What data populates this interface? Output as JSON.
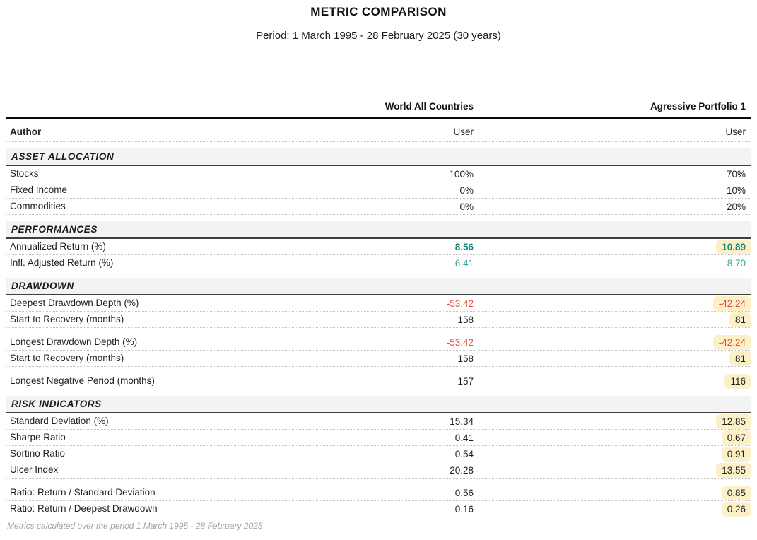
{
  "page": {
    "title": "METRIC COMPARISON",
    "subtitle": "Period: 1 March 1995 - 28 February 2025 (30 years)",
    "footer_note": "Metrics calculated over the period 1 March 1995 - 28 February 2025"
  },
  "colors": {
    "positive_bold": "#13897b",
    "positive": "#2fa69b",
    "negative": "#e74c3c",
    "highlight_bg": "#fcf0c8",
    "section_band_bg": "#f3f3f3"
  },
  "chart_data": {
    "type": "table",
    "title": "METRIC COMPARISON",
    "period": "1 March 1995 - 28 February 2025 (30 years)",
    "columns": [
      "World All Countries",
      "Agressive Portfolio 1"
    ],
    "author_row": {
      "label": "Author",
      "values": [
        "User",
        "User"
      ]
    },
    "sections": [
      {
        "name": "ASSET ALLOCATION",
        "groups": [
          {
            "rows": [
              {
                "label": "Stocks",
                "values": [
                  {
                    "text": "100%"
                  },
                  {
                    "text": "70%"
                  }
                ]
              },
              {
                "label": "Fixed Income",
                "values": [
                  {
                    "text": "0%"
                  },
                  {
                    "text": "10%"
                  }
                ]
              },
              {
                "label": "Commodities",
                "values": [
                  {
                    "text": "0%"
                  },
                  {
                    "text": "20%"
                  }
                ]
              }
            ]
          }
        ]
      },
      {
        "name": "PERFORMANCES",
        "groups": [
          {
            "rows": [
              {
                "label": "Annualized Return (%)",
                "values": [
                  {
                    "text": "8.56",
                    "style": "positive-bold"
                  },
                  {
                    "text": "10.89",
                    "style": "positive-bold",
                    "highlight": true
                  }
                ]
              },
              {
                "label": "Infl. Adjusted Return (%)",
                "values": [
                  {
                    "text": "6.41",
                    "style": "positive"
                  },
                  {
                    "text": "8.70",
                    "style": "positive"
                  }
                ]
              }
            ]
          }
        ]
      },
      {
        "name": "DRAWDOWN",
        "groups": [
          {
            "rows": [
              {
                "label": "Deepest Drawdown Depth (%)",
                "values": [
                  {
                    "text": "-53.42",
                    "style": "negative"
                  },
                  {
                    "text": "-42.24",
                    "style": "negative",
                    "highlight": true
                  }
                ]
              },
              {
                "label": "Start to Recovery (months)",
                "values": [
                  {
                    "text": "158"
                  },
                  {
                    "text": "81",
                    "highlight": true
                  }
                ]
              }
            ]
          },
          {
            "rows": [
              {
                "label": "Longest Drawdown Depth (%)",
                "values": [
                  {
                    "text": "-53.42",
                    "style": "negative"
                  },
                  {
                    "text": "-42.24",
                    "style": "negative",
                    "highlight": true
                  }
                ]
              },
              {
                "label": "Start to Recovery (months)",
                "values": [
                  {
                    "text": "158"
                  },
                  {
                    "text": "81",
                    "highlight": true
                  }
                ]
              }
            ]
          },
          {
            "rows": [
              {
                "label": "Longest Negative Period (months)",
                "values": [
                  {
                    "text": "157"
                  },
                  {
                    "text": "116",
                    "highlight": true
                  }
                ]
              }
            ]
          }
        ]
      },
      {
        "name": "RISK INDICATORS",
        "groups": [
          {
            "rows": [
              {
                "label": "Standard Deviation (%)",
                "values": [
                  {
                    "text": "15.34"
                  },
                  {
                    "text": "12.85",
                    "highlight": true
                  }
                ]
              },
              {
                "label": "Sharpe Ratio",
                "values": [
                  {
                    "text": "0.41"
                  },
                  {
                    "text": "0.67",
                    "highlight": true
                  }
                ]
              },
              {
                "label": "Sortino Ratio",
                "values": [
                  {
                    "text": "0.54"
                  },
                  {
                    "text": "0.91",
                    "highlight": true
                  }
                ]
              },
              {
                "label": "Ulcer Index",
                "values": [
                  {
                    "text": "20.28"
                  },
                  {
                    "text": "13.55",
                    "highlight": true
                  }
                ]
              }
            ]
          },
          {
            "rows": [
              {
                "label": "Ratio: Return / Standard Deviation",
                "values": [
                  {
                    "text": "0.56"
                  },
                  {
                    "text": "0.85",
                    "highlight": true
                  }
                ]
              },
              {
                "label": "Ratio: Return / Deepest Drawdown",
                "values": [
                  {
                    "text": "0.16"
                  },
                  {
                    "text": "0.26",
                    "highlight": true
                  }
                ]
              }
            ]
          }
        ]
      }
    ]
  }
}
